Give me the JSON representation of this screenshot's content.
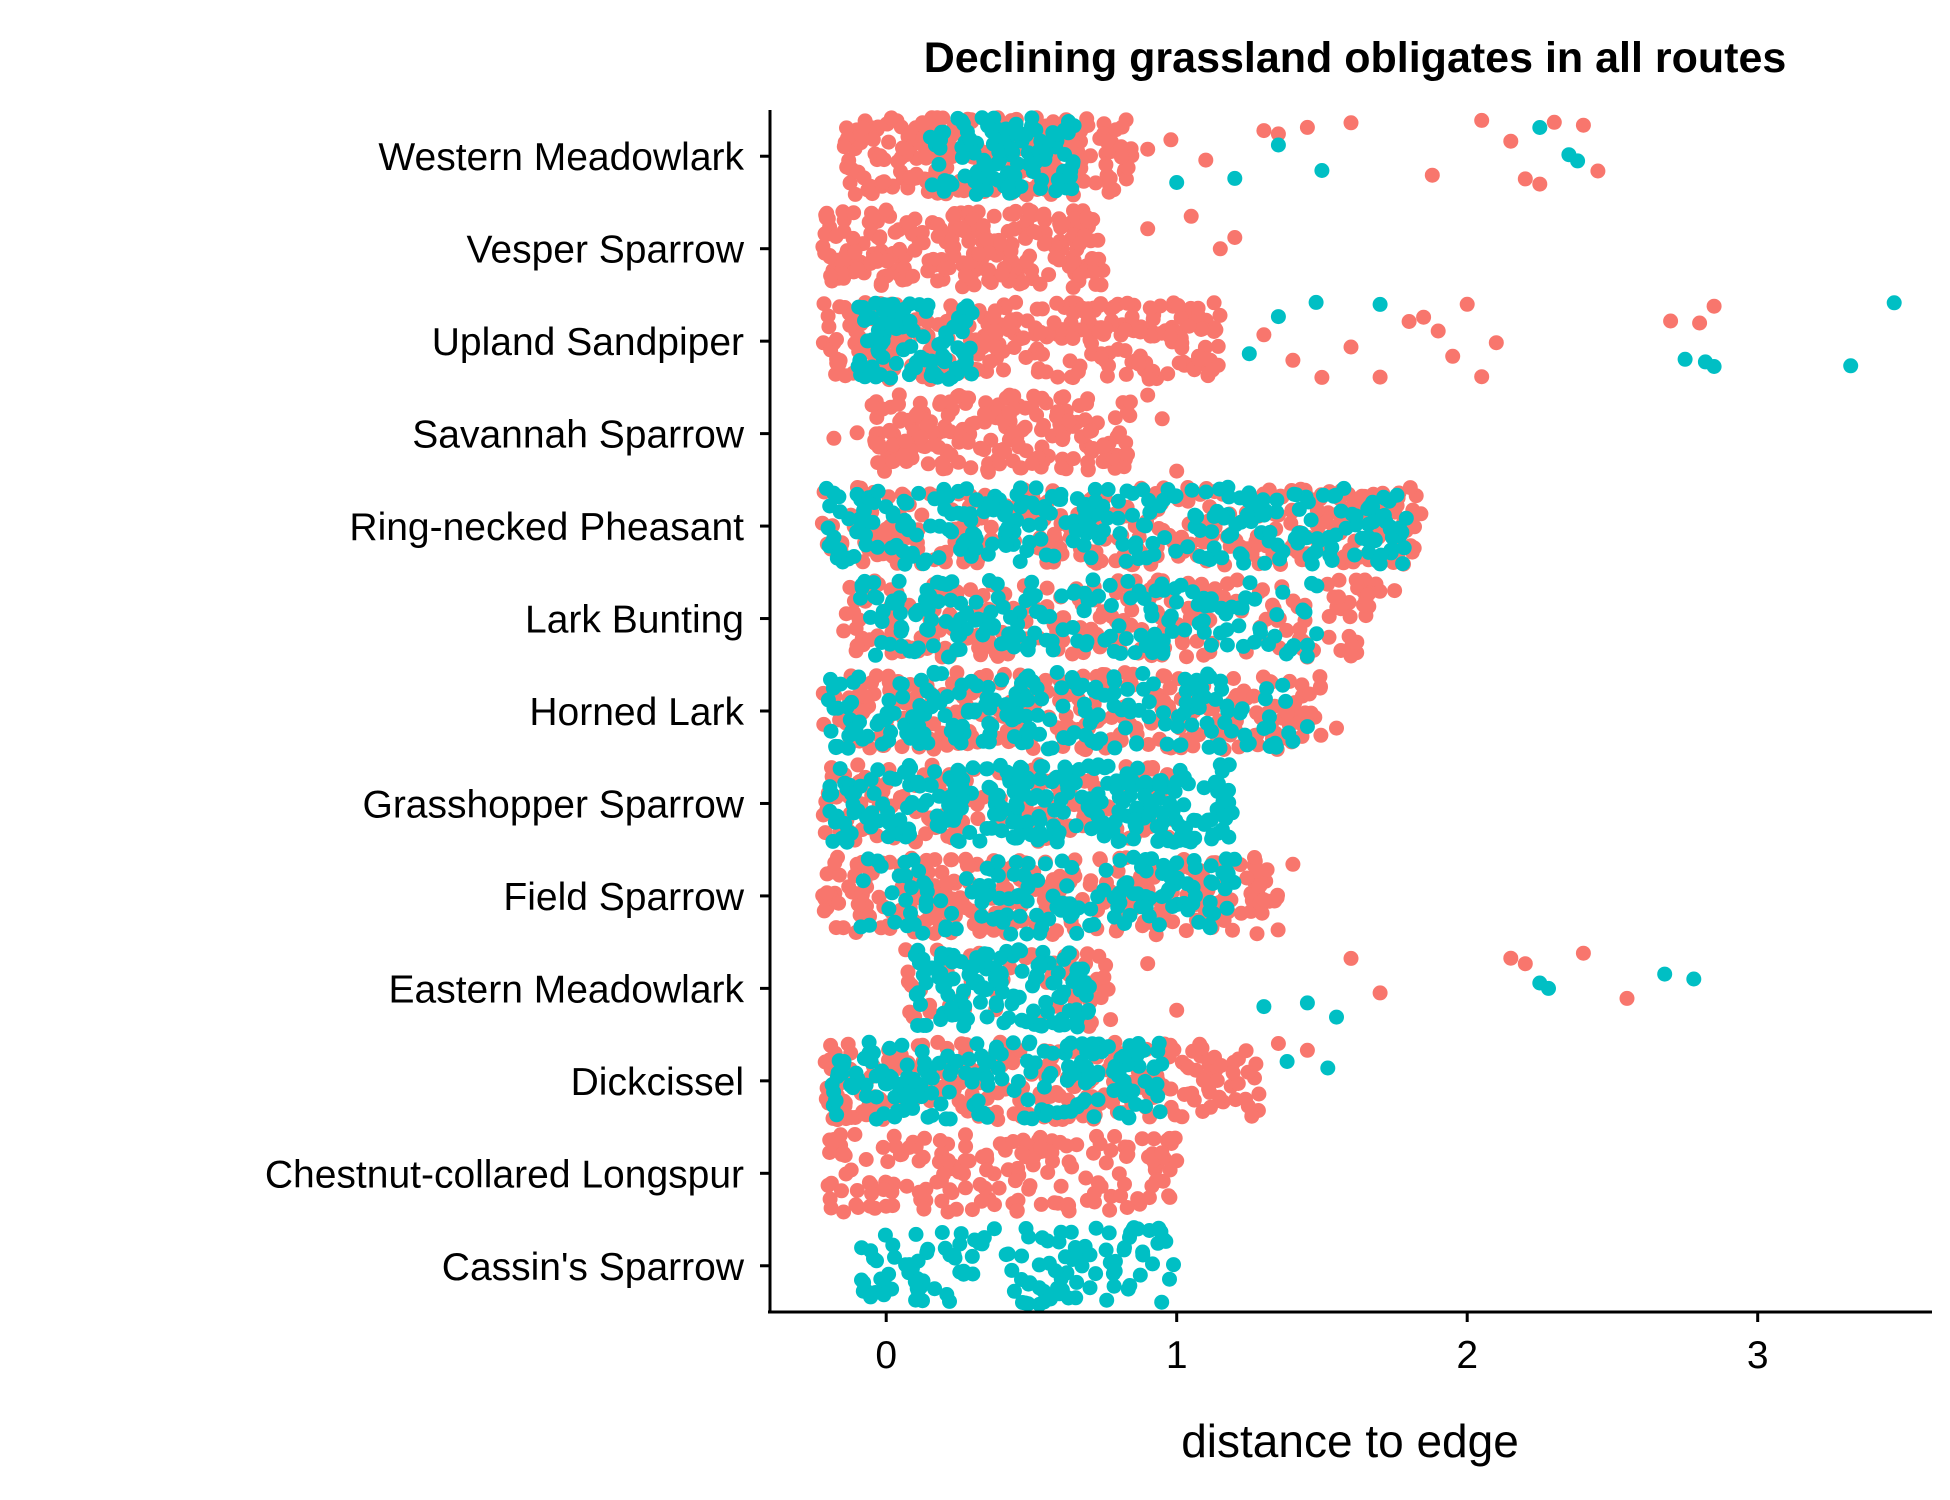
{
  "colors": {
    "salmon": "#F8766D",
    "teal": "#00BFC4"
  },
  "chart_data": {
    "type": "scatter",
    "title": "Declining grassland obligates in all routes",
    "xlabel": "distance to edge",
    "ylabel": "",
    "xlim": [
      -0.4,
      3.6
    ],
    "xticks": [
      "0",
      "1",
      "2",
      "3"
    ],
    "xtick_values": [
      0,
      1,
      2,
      3
    ],
    "grid": false,
    "legend": "none",
    "jitter": true,
    "categories": [
      "Western Meadowlark",
      "Vesper Sparrow",
      "Upland Sandpiper",
      "Savannah Sparrow",
      "Ring-necked Pheasant",
      "Lark Bunting",
      "Horned Lark",
      "Grasshopper Sparrow",
      "Field Sparrow",
      "Eastern Meadowlark",
      "Dickcissel",
      "Chestnut-collared Longspur",
      "Cassin's Sparrow"
    ],
    "series": [
      {
        "color": "#F8766D",
        "clusters": [
          {
            "category": "Western Meadowlark",
            "range": [
              -0.15,
              0.85
            ],
            "density": 1.0
          },
          {
            "category": "Vesper Sparrow",
            "range": [
              -0.22,
              0.75
            ],
            "density": 1.0
          },
          {
            "category": "Upland Sandpiper",
            "range": [
              -0.22,
              1.15
            ],
            "density": 0.8
          },
          {
            "category": "Savannah Sparrow",
            "range": [
              -0.05,
              0.85
            ],
            "density": 0.85
          },
          {
            "category": "Ring-necked Pheasant",
            "range": [
              -0.22,
              1.85
            ],
            "density": 0.6
          },
          {
            "category": "Lark Bunting",
            "range": [
              -0.15,
              1.7
            ],
            "density": 0.5
          },
          {
            "category": "Horned Lark",
            "range": [
              -0.22,
              1.5
            ],
            "density": 0.6
          },
          {
            "category": "Grasshopper Sparrow",
            "range": [
              -0.22,
              1.0
            ],
            "density": 0.5
          },
          {
            "category": "Field Sparrow",
            "range": [
              -0.22,
              1.35
            ],
            "density": 0.7
          },
          {
            "category": "Eastern Meadowlark",
            "range": [
              0.05,
              0.8
            ],
            "density": 0.3
          },
          {
            "category": "Dickcissel",
            "range": [
              -0.22,
              1.3
            ],
            "density": 0.6
          },
          {
            "category": "Chestnut-collared Longspur",
            "range": [
              -0.2,
              1.0
            ],
            "density": 0.55
          }
        ],
        "points": [
          {
            "category": "Western Meadowlark",
            "x": [
              0.9,
              0.98,
              1.1,
              1.35,
              1.6,
              1.88,
              2.05,
              2.15,
              2.2,
              2.25,
              2.3,
              2.4,
              2.45,
              1.45,
              1.3
            ]
          },
          {
            "category": "Vesper Sparrow",
            "x": [
              0.9,
              1.05,
              1.15,
              1.2
            ]
          },
          {
            "category": "Upland Sandpiper",
            "x": [
              1.3,
              1.4,
              1.5,
              1.6,
              1.7,
              1.8,
              1.85,
              1.9,
              1.95,
              2.0,
              2.05,
              2.1,
              2.7,
              2.8,
              2.85
            ]
          },
          {
            "category": "Savannah Sparrow",
            "x": [
              -0.18,
              -0.1,
              0.9,
              0.95,
              1.0
            ]
          },
          {
            "category": "Lark Bunting",
            "x": [
              1.75,
              1.6
            ]
          },
          {
            "category": "Horned Lark",
            "x": [
              1.55,
              1.45,
              1.38
            ]
          },
          {
            "category": "Field Sparrow",
            "x": [
              1.4,
              1.3
            ]
          },
          {
            "category": "Eastern Meadowlark",
            "x": [
              0.9,
              1.0,
              1.6,
              1.7,
              2.15,
              2.2,
              2.4,
              2.55
            ]
          },
          {
            "category": "Dickcissel",
            "x": [
              1.35,
              1.45
            ]
          },
          {
            "category": "Chestnut-collared Longspur",
            "x": [
              -0.2,
              -0.18,
              1.0
            ]
          }
        ]
      },
      {
        "color": "#00BFC4",
        "clusters": [
          {
            "category": "Western Meadowlark",
            "range": [
              0.15,
              0.65
            ],
            "density": 0.9
          },
          {
            "category": "Upland Sandpiper",
            "range": [
              -0.1,
              0.3
            ],
            "density": 0.9
          },
          {
            "category": "Ring-necked Pheasant",
            "range": [
              -0.22,
              1.8
            ],
            "density": 0.55
          },
          {
            "category": "Lark Bunting",
            "range": [
              -0.1,
              1.5
            ],
            "density": 0.45
          },
          {
            "category": "Horned Lark",
            "range": [
              -0.22,
              1.4
            ],
            "density": 0.5
          },
          {
            "category": "Grasshopper Sparrow",
            "range": [
              -0.2,
              1.2
            ],
            "density": 0.75
          },
          {
            "category": "Field Sparrow",
            "range": [
              -0.1,
              1.2
            ],
            "density": 0.45
          },
          {
            "category": "Eastern Meadowlark",
            "range": [
              0.1,
              0.7
            ],
            "density": 0.85
          },
          {
            "category": "Dickcissel",
            "range": [
              -0.2,
              0.95
            ],
            "density": 0.6
          },
          {
            "category": "Cassin's Sparrow",
            "range": [
              -0.1,
              1.0
            ],
            "density": 0.45
          }
        ],
        "points": [
          {
            "category": "Western Meadowlark",
            "x": [
              1.0,
              1.2,
              1.35,
              1.5,
              2.25,
              2.35,
              2.38
            ]
          },
          {
            "category": "Upland Sandpiper",
            "x": [
              1.25,
              1.35,
              1.48,
              1.7,
              2.75,
              2.82,
              2.85,
              3.32,
              3.47
            ]
          },
          {
            "category": "Horned Lark",
            "x": [
              1.3,
              1.45
            ]
          },
          {
            "category": "Eastern Meadowlark",
            "x": [
              1.3,
              1.45,
              1.55,
              2.25,
              2.28,
              2.68,
              2.78
            ]
          },
          {
            "category": "Dickcissel",
            "x": [
              1.38,
              1.52
            ]
          }
        ]
      }
    ]
  }
}
